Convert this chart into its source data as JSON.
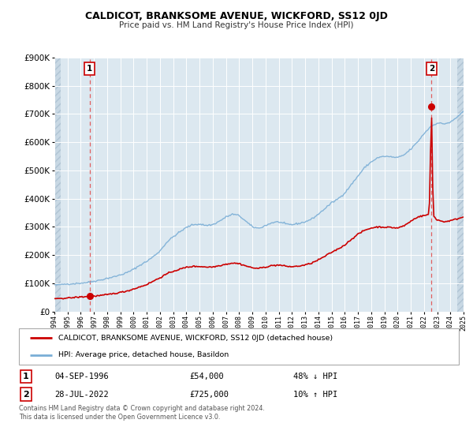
{
  "title": "CALDICOT, BRANKSOME AVENUE, WICKFORD, SS12 0JD",
  "subtitle": "Price paid vs. HM Land Registry's House Price Index (HPI)",
  "legend_line1": "CALDICOT, BRANKSOME AVENUE, WICKFORD, SS12 0JD (detached house)",
  "legend_line2": "HPI: Average price, detached house, Basildon",
  "footnote1": "Contains HM Land Registry data © Crown copyright and database right 2024.",
  "footnote2": "This data is licensed under the Open Government Licence v3.0.",
  "sale1_label": "1",
  "sale1_date": "04-SEP-1996",
  "sale1_price": "£54,000",
  "sale1_hpi": "48% ↓ HPI",
  "sale2_label": "2",
  "sale2_date": "28-JUL-2022",
  "sale2_price": "£725,000",
  "sale2_hpi": "10% ↑ HPI",
  "sale1_year": 1996.67,
  "sale1_value": 54000,
  "sale2_year": 2022.57,
  "sale2_value": 725000,
  "hpi_color": "#7aaed6",
  "sale_color": "#cc0000",
  "dashed_line_color": "#e06060",
  "plot_bg_color": "#dce8f0",
  "hatch_color": "#c8d8e4",
  "grid_color": "#ffffff",
  "ylim": [
    0,
    900000
  ],
  "xlim_start": 1994.0,
  "xlim_end": 2025.0,
  "data_start": 1994.5,
  "data_end": 2024.5
}
